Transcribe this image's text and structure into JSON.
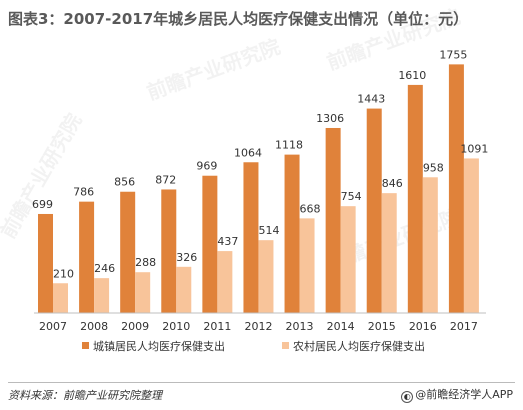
{
  "title": "图表3：2007-2017年城乡居民人均医疗保健支出情况（单位：元）",
  "source": "资料来源：前瞻产业研究院整理",
  "credit": "@前瞻经济学人APP",
  "watermark": "前瞻产业研究院",
  "chart_data": {
    "type": "bar",
    "categories": [
      "2007",
      "2008",
      "2009",
      "2010",
      "2011",
      "2012",
      "2013",
      "2014",
      "2015",
      "2016",
      "2017"
    ],
    "series": [
      {
        "name": "城镇居民人均医疗保健支出",
        "color": "#E0823A",
        "values": [
          699,
          786,
          856,
          872,
          969,
          1064,
          1118,
          1306,
          1443,
          1610,
          1755
        ]
      },
      {
        "name": "农村居民人均医疗保健支出",
        "color": "#F8C49A",
        "values": [
          210,
          246,
          288,
          326,
          437,
          514,
          668,
          754,
          846,
          958,
          1091
        ]
      }
    ],
    "ylim": [
      0,
      1800
    ],
    "grid": false,
    "legend": "bottom"
  }
}
